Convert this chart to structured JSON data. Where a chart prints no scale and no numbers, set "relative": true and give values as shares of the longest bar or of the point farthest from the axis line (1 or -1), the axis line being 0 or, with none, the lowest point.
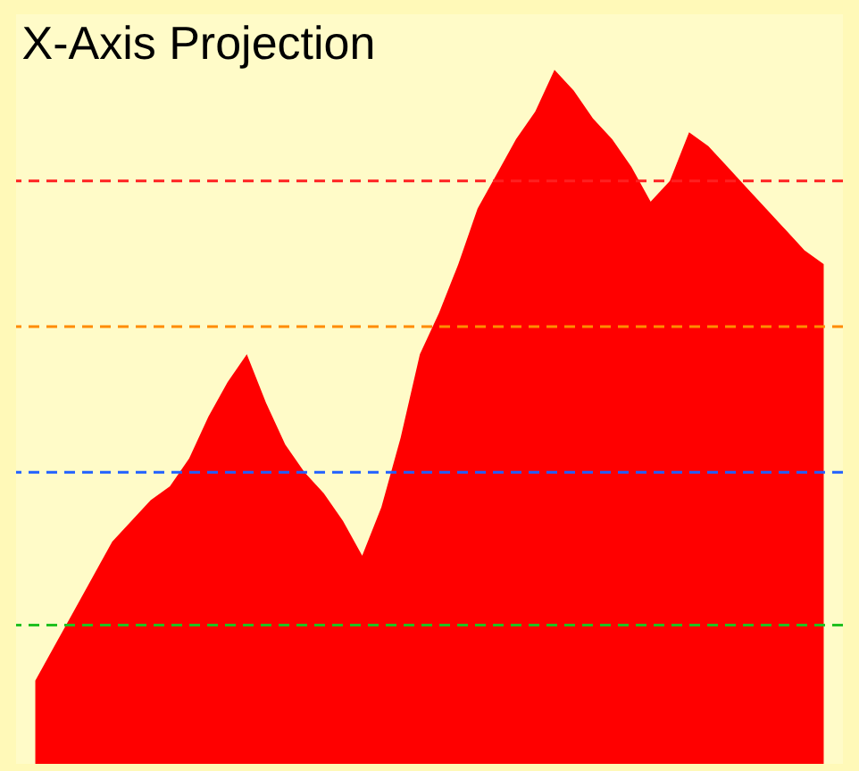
{
  "chart_data": {
    "type": "area",
    "title": "X-Axis Projection",
    "relative": true,
    "tick_labels": false,
    "categories": [
      null,
      null,
      null,
      null,
      null,
      null,
      null,
      null,
      null,
      null,
      null,
      null,
      null,
      null,
      null,
      null,
      null,
      null,
      null,
      null,
      null,
      null,
      null,
      null,
      null,
      null,
      null,
      null,
      null,
      null,
      null,
      null,
      null,
      null,
      null,
      null,
      null,
      null,
      null,
      null,
      null,
      null
    ],
    "series": [
      {
        "color": "#ff0000",
        "values": [
          0.12,
          0.17,
          0.22,
          0.27,
          0.32,
          0.35,
          0.38,
          0.4,
          0.44,
          0.5,
          0.55,
          0.59,
          0.52,
          0.46,
          0.42,
          0.39,
          0.35,
          0.3,
          0.37,
          0.47,
          0.59,
          0.65,
          0.72,
          0.8,
          0.85,
          0.9,
          0.94,
          1,
          0.97,
          0.93,
          0.9,
          0.86,
          0.81,
          0.84,
          0.91,
          0.89,
          0.86,
          0.83,
          0.8,
          0.77,
          0.74,
          0.72
        ]
      }
    ],
    "ref_lines": [
      {
        "axis": "y",
        "value": 0.84,
        "color": "#ff2020",
        "line_style": "dashed"
      },
      {
        "axis": "y",
        "value": 0.63,
        "color": "#ff8c00",
        "line_style": "dashed"
      },
      {
        "axis": "y",
        "value": 0.42,
        "color": "#2060ff",
        "line_style": "dashed"
      },
      {
        "axis": "y",
        "value": 0.2,
        "color": "#20c020",
        "line_style": "dashed"
      }
    ]
  }
}
